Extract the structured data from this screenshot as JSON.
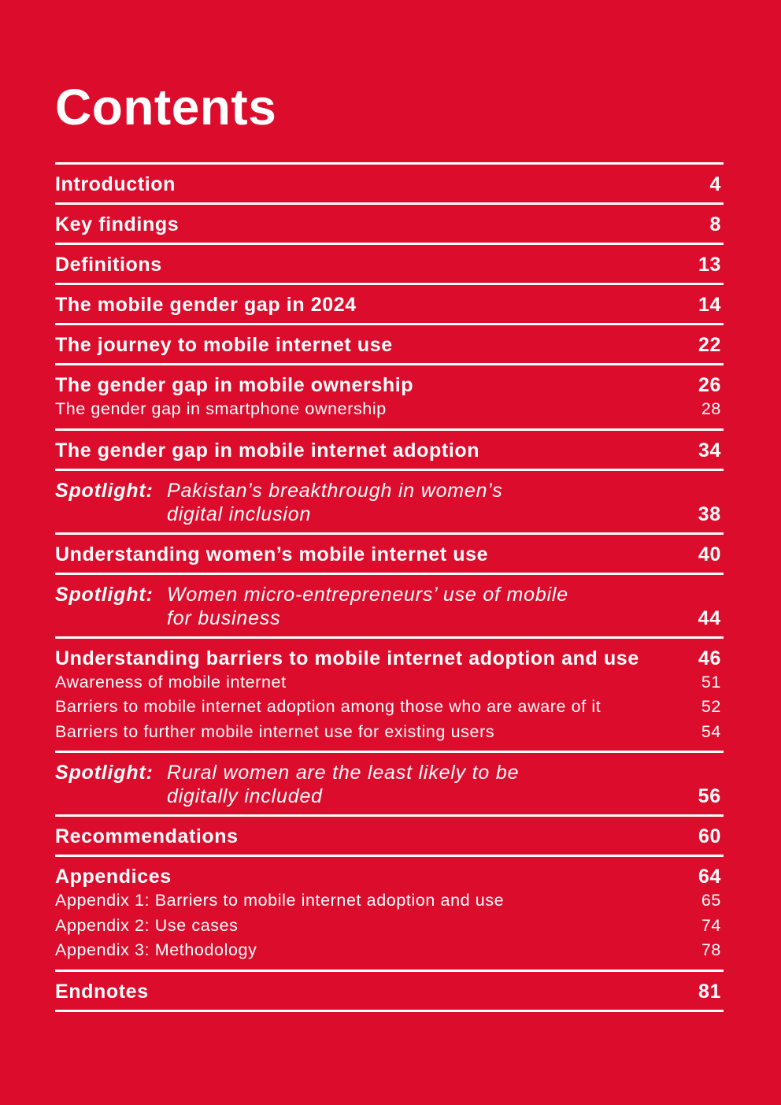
{
  "title": "Contents",
  "entries": {
    "introduction": {
      "label": "Introduction",
      "page": "4"
    },
    "key_findings": {
      "label": "Key findings",
      "page": "8"
    },
    "definitions": {
      "label": "Definitions",
      "page": "13"
    },
    "gender_gap_2024": {
      "label": "The mobile gender gap in 2024",
      "page": "14"
    },
    "journey": {
      "label": "The journey to mobile internet use",
      "page": "22"
    },
    "ownership": {
      "label": "The gender gap in mobile ownership",
      "page": "26",
      "subs": [
        {
          "label": "The gender gap in smartphone ownership",
          "page": "28"
        }
      ]
    },
    "adoption": {
      "label": "The gender gap in mobile internet adoption",
      "page": "34"
    },
    "spotlight_pakistan": {
      "prefix": "Spotlight:",
      "line1": "Pakistan’s breakthrough in women’s",
      "line2": "digital inclusion",
      "page": "38"
    },
    "understanding_use": {
      "label": "Understanding women’s mobile internet use",
      "page": "40"
    },
    "spotlight_entrepreneurs": {
      "prefix": "Spotlight:",
      "line1": "Women micro-entrepreneurs’ use of mobile",
      "line2": "for business",
      "page": "44"
    },
    "barriers": {
      "label": "Understanding barriers to mobile internet adoption and use",
      "page": "46",
      "subs": [
        {
          "label": "Awareness of mobile internet",
          "page": "51"
        },
        {
          "label": "Barriers to mobile internet adoption among those who are aware of it",
          "page": "52"
        },
        {
          "label": "Barriers to further mobile internet use for existing users",
          "page": "54"
        }
      ]
    },
    "spotlight_rural": {
      "prefix": "Spotlight:",
      "line1": "Rural women are the least likely to be",
      "line2": "digitally included",
      "page": "56"
    },
    "recommendations": {
      "label": "Recommendations",
      "page": "60"
    },
    "appendices": {
      "label": "Appendices",
      "page": "64",
      "subs": [
        {
          "label": "Appendix 1: Barriers to mobile internet adoption and use",
          "page": "65"
        },
        {
          "label": "Appendix 2: Use cases",
          "page": "74"
        },
        {
          "label": "Appendix 3: Methodology",
          "page": "78"
        }
      ]
    },
    "endnotes": {
      "label": "Endnotes",
      "page": "81"
    }
  }
}
